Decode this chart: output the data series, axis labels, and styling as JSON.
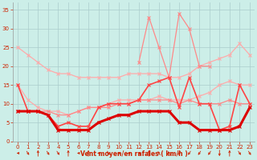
{
  "x": [
    0,
    1,
    2,
    3,
    4,
    5,
    6,
    7,
    8,
    9,
    10,
    11,
    12,
    13,
    14,
    15,
    16,
    17,
    18,
    19,
    20,
    21,
    22,
    23
  ],
  "series": [
    {
      "color": "#ffaaaa",
      "linewidth": 0.9,
      "marker": "x",
      "markersize": 2.5,
      "values": [
        25,
        23,
        21,
        19,
        18,
        18,
        17,
        17,
        17,
        17,
        17,
        18,
        18,
        18,
        18,
        17,
        17,
        18,
        20,
        21,
        22,
        23,
        26,
        23
      ]
    },
    {
      "color": "#ffaaaa",
      "linewidth": 0.9,
      "marker": "x",
      "markersize": 2.5,
      "values": [
        15,
        11,
        9,
        8,
        8,
        7,
        8,
        9,
        9,
        10,
        11,
        11,
        11,
        11,
        12,
        11,
        11,
        11,
        12,
        13,
        15,
        16,
        15,
        15
      ]
    },
    {
      "color": "#ff8888",
      "linewidth": 0.9,
      "marker": "x",
      "markersize": 2.5,
      "values": [
        null,
        null,
        null,
        null,
        null,
        null,
        null,
        null,
        null,
        null,
        null,
        null,
        21,
        33,
        25,
        17,
        34,
        30,
        20,
        20,
        null,
        null,
        null,
        null
      ]
    },
    {
      "color": "#ff8888",
      "linewidth": 0.9,
      "marker": "x",
      "markersize": 2.5,
      "values": [
        8,
        8,
        8,
        8,
        7,
        7,
        8,
        9,
        9,
        9,
        10,
        10,
        11,
        11,
        11,
        11,
        10,
        11,
        10,
        10,
        10,
        11,
        10,
        10
      ]
    },
    {
      "color": "#ff4444",
      "linewidth": 1.2,
      "marker": "x",
      "markersize": 2.5,
      "values": [
        15,
        8,
        8,
        7,
        4,
        5,
        4,
        4,
        9,
        10,
        10,
        10,
        11,
        15,
        16,
        17,
        9,
        17,
        10,
        10,
        3,
        4,
        15,
        10
      ]
    },
    {
      "color": "#dd0000",
      "linewidth": 2.2,
      "marker": "x",
      "markersize": 2.5,
      "values": [
        8,
        8,
        8,
        7,
        3,
        3,
        3,
        3,
        5,
        6,
        7,
        7,
        8,
        8,
        8,
        8,
        5,
        5,
        3,
        3,
        3,
        3,
        4,
        9
      ]
    }
  ],
  "xlabel": "Vent moyen/en rafales ( km/h )",
  "xlim": [
    -0.5,
    23.5
  ],
  "ylim": [
    0,
    37
  ],
  "yticks": [
    0,
    5,
    10,
    15,
    20,
    25,
    30,
    35
  ],
  "xticks": [
    0,
    1,
    2,
    3,
    4,
    5,
    6,
    7,
    8,
    9,
    10,
    11,
    12,
    13,
    14,
    15,
    16,
    17,
    18,
    19,
    20,
    21,
    22,
    23
  ],
  "background_color": "#cceee8",
  "grid_color": "#aacccc",
  "tick_color": "#cc2200",
  "label_color": "#cc2200",
  "arrow_color": "#cc2200",
  "arrow_angles": [
    180,
    315,
    90,
    315,
    315,
    90,
    180,
    90,
    180,
    315,
    180,
    180,
    180,
    90,
    135,
    135,
    225,
    225,
    225,
    225,
    270,
    90,
    315,
    315
  ]
}
